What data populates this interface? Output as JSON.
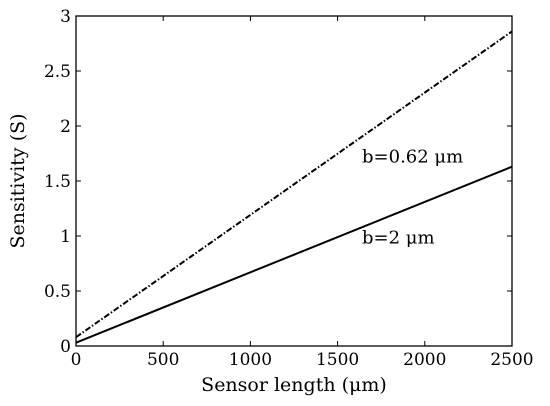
{
  "chart_data": {
    "type": "line",
    "title": "",
    "xlabel": "Sensor length (μm)",
    "ylabel": "Sensitivity (S)",
    "xlim": [
      0,
      2500
    ],
    "ylim": [
      0,
      3
    ],
    "x_ticks": [
      0,
      500,
      1000,
      1500,
      2000,
      2500
    ],
    "y_ticks": [
      0,
      0.5,
      1,
      1.5,
      2,
      2.5,
      3
    ],
    "x_tick_labels": [
      "0",
      "500",
      "1000",
      "1500",
      "2000",
      "2500"
    ],
    "y_tick_labels": [
      "0",
      "0.5",
      "1",
      "1.5",
      "2",
      "2.5",
      "3"
    ],
    "grid": false,
    "series": [
      {
        "name": "b=0.62 μm",
        "line_style": "dash-dot",
        "color": "#000000",
        "x": [
          0,
          2500
        ],
        "y": [
          0.08,
          2.86
        ]
      },
      {
        "name": "b=2 μm",
        "line_style": "solid",
        "color": "#000000",
        "x": [
          0,
          2500
        ],
        "y": [
          0.03,
          1.63
        ]
      }
    ],
    "annotations": [
      {
        "text": "b=0.62 μm",
        "x": 1640,
        "y": 1.67
      },
      {
        "text": "b=2 μm",
        "x": 1640,
        "y": 0.93
      }
    ]
  }
}
